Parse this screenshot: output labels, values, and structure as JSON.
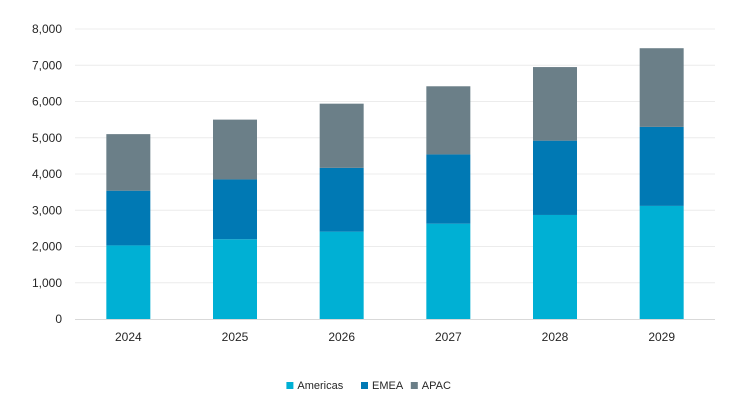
{
  "chart_data": {
    "type": "bar",
    "stacked": true,
    "title": "",
    "xlabel": "",
    "ylabel": "",
    "categories": [
      "2024",
      "2025",
      "2026",
      "2027",
      "2028",
      "2029"
    ],
    "series": [
      {
        "name": "Americas",
        "color": "#00b0d4",
        "values": [
          2030,
          2200,
          2410,
          2630,
          2870,
          3120
        ]
      },
      {
        "name": "EMEA",
        "color": "#0079b4",
        "values": [
          1510,
          1650,
          1760,
          1910,
          2050,
          2180
        ]
      },
      {
        "name": "APAC",
        "color": "#6b7f88",
        "values": [
          1560,
          1650,
          1770,
          1880,
          2030,
          2170
        ]
      }
    ],
    "ylim": [
      0,
      8000
    ],
    "yticks": [
      0,
      1000,
      2000,
      3000,
      4000,
      5000,
      6000,
      7000,
      8000
    ],
    "ytick_labels": [
      "0",
      "1,000",
      "2,000",
      "3,000",
      "4,000",
      "5,000",
      "6,000",
      "7,000",
      "8,000"
    ],
    "grid": true,
    "grid_color": "#ececec",
    "legend_position": "bottom-center"
  }
}
